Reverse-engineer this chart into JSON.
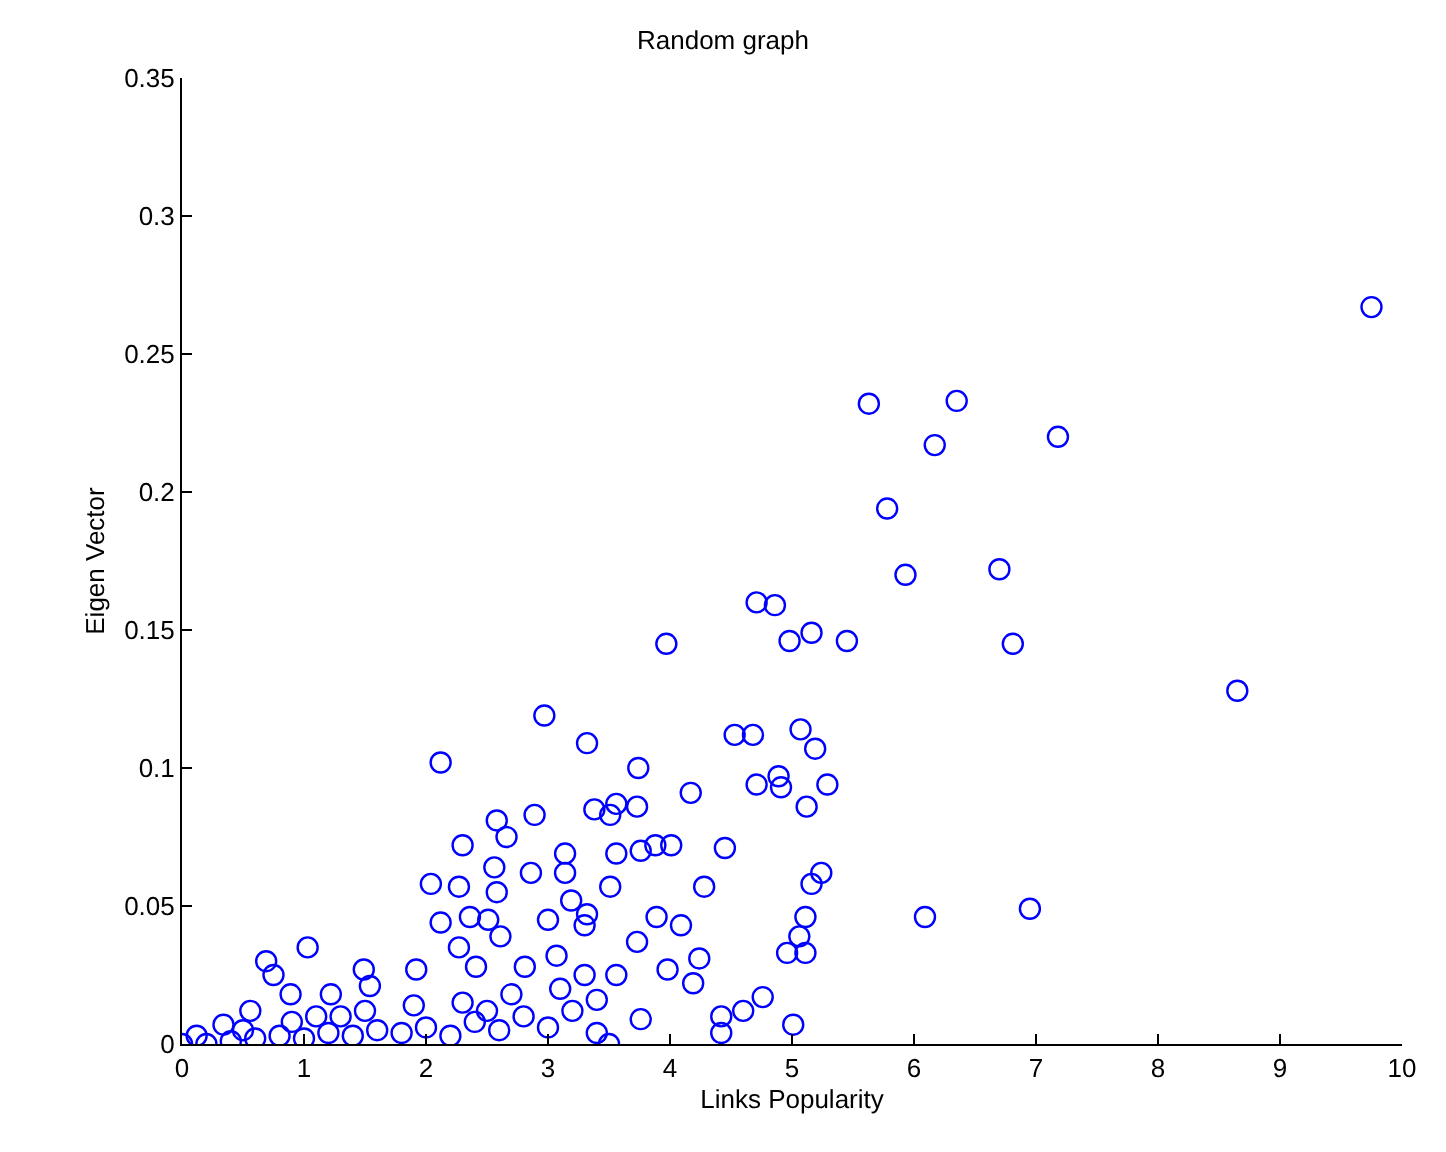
{
  "chart_data": {
    "type": "scatter",
    "title": "Random graph",
    "xlabel": "Links Popularity",
    "ylabel": "Eigen Vector",
    "xlim": [
      0,
      10
    ],
    "ylim": [
      0,
      0.35
    ],
    "xticks": [
      0,
      1,
      2,
      3,
      4,
      5,
      6,
      7,
      8,
      9,
      10
    ],
    "yticks": [
      0,
      0.05,
      0.1,
      0.15,
      0.2,
      0.25,
      0.3,
      0.35
    ],
    "marker": "circle",
    "series": [
      {
        "color": "#0000ff",
        "x": [
          9.75,
          8.65,
          5.63,
          6.35,
          7.18,
          6.17,
          5.78,
          5.93,
          6.7,
          4.71,
          4.86,
          3.97,
          4.98,
          5.16,
          5.45,
          6.81,
          2.97,
          6.09,
          6.95,
          5.01,
          4.53,
          4.68,
          5.07,
          5.19,
          4.71,
          4.89,
          5.29,
          4.91,
          5.12,
          4.17,
          3.74,
          4.45,
          4.28,
          5.24,
          5.16,
          5.11,
          5.06,
          4.96,
          5.11,
          3.89,
          4.09,
          3.73,
          4.24,
          3.98,
          4.19,
          3.56,
          4.76,
          4.6,
          4.42,
          4.42,
          3.76,
          4.01,
          3.88,
          3.76,
          3.56,
          3.51,
          3.56,
          3.73,
          2.12,
          3.32,
          1.03,
          0.69,
          0.75,
          2.58,
          2.89,
          2.66,
          2.3,
          2.04,
          2.27,
          2.56,
          2.58,
          2.86,
          3.14,
          3.14,
          3.38,
          3.51,
          2.12,
          2.36,
          2.51,
          2.61,
          3.0,
          3.3,
          3.19,
          3.32,
          2.27,
          2.41,
          2.81,
          3.07,
          1.92,
          1.49,
          1.22,
          1.54,
          0.89,
          0.56,
          0.34,
          0.12,
          0.0,
          0.2,
          0.4,
          0.6,
          0.8,
          1.0,
          1.2,
          1.4,
          1.6,
          1.8,
          2.0,
          2.2,
          2.4,
          2.6,
          2.8,
          3.0,
          3.2,
          3.4,
          3.5,
          1.1,
          1.5,
          1.9,
          2.3,
          2.7,
          3.1,
          3.4,
          0.9,
          0.5,
          1.3,
          2.5,
          3.3
        ],
        "values": [
          0.267,
          0.128,
          0.232,
          0.233,
          0.22,
          0.217,
          0.194,
          0.17,
          0.172,
          0.16,
          0.159,
          0.145,
          0.146,
          0.149,
          0.146,
          0.145,
          0.119,
          0.046,
          0.049,
          0.007,
          0.112,
          0.112,
          0.114,
          0.107,
          0.094,
          0.097,
          0.094,
          0.093,
          0.086,
          0.091,
          0.1,
          0.071,
          0.057,
          0.062,
          0.058,
          0.046,
          0.039,
          0.033,
          0.033,
          0.046,
          0.043,
          0.037,
          0.031,
          0.027,
          0.022,
          0.025,
          0.017,
          0.012,
          0.01,
          0.004,
          0.009,
          0.072,
          0.072,
          0.07,
          0.069,
          0.057,
          0.087,
          0.086,
          0.102,
          0.109,
          0.035,
          0.03,
          0.025,
          0.081,
          0.083,
          0.075,
          0.072,
          0.058,
          0.057,
          0.064,
          0.055,
          0.062,
          0.069,
          0.062,
          0.085,
          0.083,
          0.044,
          0.046,
          0.045,
          0.039,
          0.045,
          0.043,
          0.052,
          0.047,
          0.035,
          0.028,
          0.028,
          0.032,
          0.027,
          0.027,
          0.018,
          0.021,
          0.018,
          0.012,
          0.007,
          0.003,
          0.0,
          0.0,
          0.001,
          0.002,
          0.003,
          0.002,
          0.004,
          0.003,
          0.005,
          0.004,
          0.006,
          0.003,
          0.008,
          0.005,
          0.01,
          0.006,
          0.012,
          0.004,
          0.0,
          0.01,
          0.012,
          0.014,
          0.015,
          0.018,
          0.02,
          0.016,
          0.008,
          0.005,
          0.01,
          0.012,
          0.025
        ]
      }
    ]
  }
}
